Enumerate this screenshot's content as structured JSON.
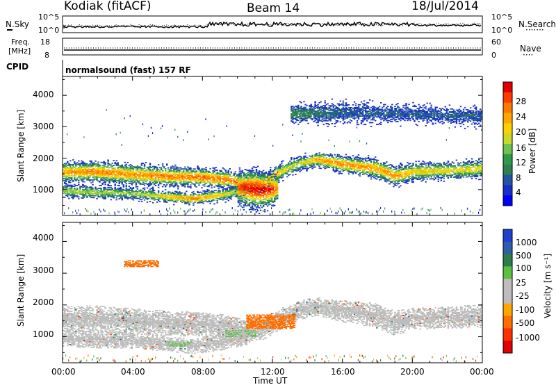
{
  "header": {
    "station": "Kodiak (fitACF)",
    "beam": "Beam 14",
    "date": "18/Jul/2014"
  },
  "noise_panel": {
    "left_label": "N.Sky",
    "left_ticks": [
      "10^5",
      "10^0"
    ],
    "right_ticks": [
      "10^5",
      "10^0"
    ],
    "right_label": "N.Search",
    "right_legend": "·······"
  },
  "freq_panel": {
    "left_label_1": "Freq.",
    "left_label_2": "[MHz]",
    "left_ticks": [
      "18",
      "8"
    ],
    "right_ticks": [
      "60",
      "0"
    ],
    "right_label": "Nave",
    "right_legend": "····"
  },
  "cpid_panel": {
    "label": "CPID",
    "text": "normalsound (fast) 157 RF"
  },
  "slant_range_axis": {
    "label": "Slant Range [km]",
    "ticks": [
      "4000",
      "3000",
      "2000",
      "1000"
    ],
    "range_km": [
      180,
      4600
    ]
  },
  "time_axis": {
    "label": "Time UT",
    "ticks": [
      "00:00",
      "04:00",
      "08:00",
      "12:00",
      "16:00",
      "20:00",
      "00:00"
    ],
    "range_hours": [
      0,
      24
    ]
  },
  "power_colorbar": {
    "label": "Power [dB]",
    "ticks": [
      "28",
      "24",
      "20",
      "16",
      "12",
      "8",
      "4"
    ],
    "colors": [
      "#e00000",
      "#ff3a00",
      "#ff7800",
      "#ffa600",
      "#ffd000",
      "#c9d82a",
      "#6fc24f",
      "#2e9a4a",
      "#2f7f4f",
      "#2255a6",
      "#1a2ec8",
      "#0000ff"
    ]
  },
  "velocity_colorbar": {
    "label": "Velocity [m s⁻¹]",
    "ticks": [
      "1000",
      "500",
      "100",
      "25",
      "-25",
      "-100",
      "-500",
      "-1000"
    ],
    "colors": [
      "#2040d0",
      "#2e5fa8",
      "#2e7d4a",
      "#5cc040",
      "#bdbdbd",
      "#bdbdbd",
      "#ffa600",
      "#ff7000",
      "#ff3000",
      "#e00000"
    ]
  },
  "chart_data": {
    "type": "heatmap",
    "title": "Kodiak (fitACF) Beam 14 18/Jul/2014",
    "xlabel": "Time UT",
    "ylabel": "Slant Range [km]",
    "x_ticks": [
      "00:00",
      "04:00",
      "08:00",
      "12:00",
      "16:00",
      "20:00",
      "00:00"
    ],
    "y_ticks": [
      1000,
      2000,
      3000,
      4000
    ],
    "xlim_hours": [
      0,
      24
    ],
    "ylim_km": [
      180,
      4600
    ],
    "panels": [
      {
        "name": "Power [dB]",
        "range": [
          0,
          30
        ],
        "echo_bands": [
          {
            "t": [
              0.0,
              2.0,
              4.0,
              6.0,
              8.0,
              9.5,
              10.5,
              11.5,
              12.5,
              13.5,
              14.5,
              16.0,
              18.0,
              19.0,
              20.0,
              22.0,
              24.0
            ],
            "center_km": [
              1550,
              1560,
              1470,
              1410,
              1380,
              1300,
              1150,
              1250,
              1580,
              1820,
              1950,
              1800,
              1650,
              1420,
              1560,
              1600,
              1650
            ],
            "width_km": [
              300,
              320,
              320,
              300,
              280,
              280,
              260,
              260,
              250,
              220,
              220,
              260,
              300,
              300,
              260,
              260,
              280
            ],
            "peak_db": [
              22,
              24,
              23,
              24,
              25,
              24,
              26,
              25,
              18,
              16,
              22,
              24,
              22,
              23,
              20,
              18,
              18
            ]
          },
          {
            "t": [
              0.0,
              2.0,
              4.0,
              6.0,
              7.5,
              9.0,
              10.5
            ],
            "center_km": [
              950,
              900,
              870,
              760,
              700,
              820,
              1000
            ],
            "width_km": [
              200,
              200,
              180,
              180,
              180,
              200,
              200
            ],
            "peak_db": [
              16,
              15,
              14,
              20,
              24,
              18,
              14
            ]
          },
          {
            "t": [
              10.0,
              10.5,
              11.0,
              11.5,
              12.0,
              12.3
            ],
            "center_km": [
              1050,
              1050,
              1000,
              980,
              1000,
              1050
            ],
            "width_km": [
              500,
              560,
              600,
              560,
              500,
              400
            ],
            "peak_db": [
              26,
              29,
              30,
              29,
              27,
              22
            ]
          },
          {
            "t": [
              13.0,
              16.0,
              20.0,
              24.0
            ],
            "center_km": [
              3400,
              3450,
              3400,
              3300
            ],
            "width_km": [
              300,
              350,
              300,
              300
            ],
            "peak_db": [
              10,
              6,
              6,
              6
            ]
          }
        ]
      },
      {
        "name": "Velocity [m s⁻¹]",
        "range": [
          -1000,
          1000
        ],
        "dominant_value": 0,
        "features": [
          {
            "t_range": [
              10.5,
              13.3
            ],
            "km_range": [
              1250,
              1700
            ],
            "velocity": -150
          },
          {
            "t_range": [
              9.3,
              11.0
            ],
            "km_range": [
              1000,
              1200
            ],
            "velocity": 100
          },
          {
            "t_range": [
              6.0,
              7.5
            ],
            "km_range": [
              700,
              850
            ],
            "velocity": 100
          },
          {
            "t_range": [
              3.5,
              5.5
            ],
            "km_range": [
              3200,
              3400
            ],
            "velocity": -150
          }
        ]
      }
    ]
  }
}
